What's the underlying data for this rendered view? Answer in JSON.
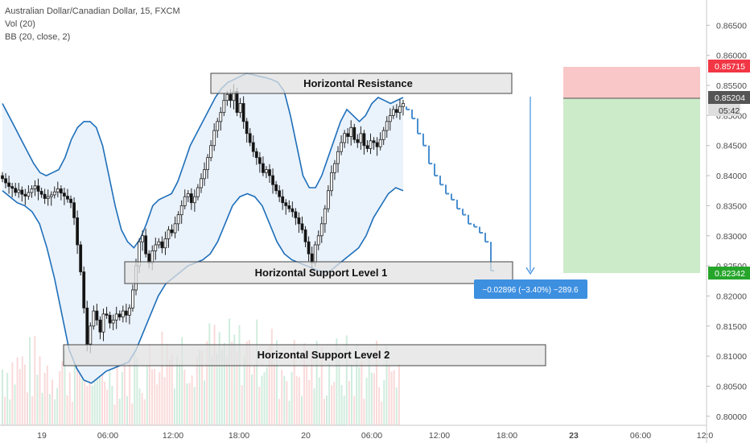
{
  "legend": {
    "symbol": "Australian Dollar/Canadian Dollar, 15, FXCM",
    "volume": "Vol (20)",
    "bollinger": "BB (20, close, 2)"
  },
  "annotations": {
    "resistance": "Horizontal Resistance",
    "support1": "Horizontal Support Level 1",
    "support2": "Horizontal Support Level 2",
    "measure": "−0.02896 (−3.40%) −289.6"
  },
  "price_tags": {
    "stop": "0.85715",
    "current": "0.85204",
    "countdown": "05:42",
    "target": "0.82342"
  },
  "colors": {
    "bull": "#333333",
    "bear": "#111111",
    "band": "#1e6fba",
    "band_fill": "#eaf2fb",
    "projection": "#4a8fd0",
    "stop_zone": "#f9c7c7",
    "target_zone": "#ccebc9",
    "stop_tag": "#f23645",
    "target_tag": "#26a52b",
    "current_tag": "#555555",
    "measure_box": "#3d8fe0"
  },
  "chart_data": {
    "type": "candlestick",
    "title": "Australian Dollar/Canadian Dollar, 15, FXCM",
    "y_axis": {
      "ylim": [
        0.7985,
        0.8692
      ],
      "ticks": [
        "0.80000",
        "0.80500",
        "0.81000",
        "0.81500",
        "0.82000",
        "0.82500",
        "0.83000",
        "0.83500",
        "0.84000",
        "0.84500",
        "0.85000",
        "0.85500",
        "0.86000",
        "0.86500"
      ]
    },
    "x_axis": {
      "ticks": [
        {
          "label": "19",
          "bold": false
        },
        {
          "label": "06:00",
          "bold": false
        },
        {
          "label": "12:00",
          "bold": false
        },
        {
          "label": "18:00",
          "bold": false
        },
        {
          "label": "20",
          "bold": false
        },
        {
          "label": "06:00",
          "bold": false
        },
        {
          "label": "12:00",
          "bold": false
        },
        {
          "label": "18:00",
          "bold": false
        },
        {
          "label": "23",
          "bold": true
        },
        {
          "label": "06:00",
          "bold": false
        },
        {
          "label": "12:0",
          "bold": false
        }
      ]
    },
    "series_close": [
      0.8395,
      0.8388,
      0.8382,
      0.8379,
      0.8372,
      0.8376,
      0.8369,
      0.8366,
      0.8372,
      0.8378,
      0.8383,
      0.8374,
      0.8369,
      0.8362,
      0.8365,
      0.8368,
      0.8373,
      0.8378,
      0.8371,
      0.8366,
      0.8361,
      0.8355,
      0.833,
      0.8285,
      0.824,
      0.818,
      0.812,
      0.815,
      0.8175,
      0.816,
      0.814,
      0.817,
      0.8168,
      0.8155,
      0.816,
      0.817,
      0.8165,
      0.8175,
      0.8168,
      0.818,
      0.821,
      0.825,
      0.829,
      0.83,
      0.827,
      0.8255,
      0.8275,
      0.8285,
      0.829,
      0.828,
      0.8295,
      0.831,
      0.8305,
      0.832,
      0.8335,
      0.835,
      0.8365,
      0.837,
      0.8355,
      0.8365,
      0.838,
      0.8395,
      0.841,
      0.843,
      0.845,
      0.8475,
      0.849,
      0.8505,
      0.8525,
      0.8535,
      0.8525,
      0.854,
      0.8505,
      0.852,
      0.849,
      0.847,
      0.8455,
      0.844,
      0.843,
      0.842,
      0.8405,
      0.841,
      0.84,
      0.8385,
      0.8375,
      0.8365,
      0.8355,
      0.835,
      0.8345,
      0.834,
      0.833,
      0.832,
      0.831,
      0.829,
      0.827,
      0.8255,
      0.8285,
      0.83,
      0.832,
      0.8345,
      0.8375,
      0.8405,
      0.842,
      0.844,
      0.8455,
      0.847,
      0.8465,
      0.848,
      0.846,
      0.8455,
      0.847,
      0.845,
      0.8445,
      0.8458,
      0.8455,
      0.8448,
      0.846,
      0.8475,
      0.849,
      0.85,
      0.851,
      0.8505,
      0.8515,
      0.852
    ],
    "projection_path": [
      0.851,
      0.8495,
      0.847,
      0.845,
      0.842,
      0.84,
      0.8385,
      0.837,
      0.836,
      0.8345,
      0.8335,
      0.832,
      0.8315,
      0.8305,
      0.829,
      0.8242
    ],
    "bollinger_upper": [
      0.852,
      0.85,
      0.848,
      0.846,
      0.844,
      0.842,
      0.8405,
      0.84,
      0.8405,
      0.841,
      0.843,
      0.846,
      0.848,
      0.849,
      0.849,
      0.848,
      0.845,
      0.84,
      0.835,
      0.831,
      0.829,
      0.828,
      0.8295,
      0.832,
      0.835,
      0.836,
      0.8365,
      0.837,
      0.839,
      0.842,
      0.845,
      0.847,
      0.849,
      0.851,
      0.853,
      0.8545,
      0.8555,
      0.856,
      0.8565,
      0.857,
      0.8568,
      0.8565,
      0.8563,
      0.856,
      0.8555,
      0.854,
      0.85,
      0.845,
      0.84,
      0.838,
      0.838,
      0.84,
      0.843,
      0.846,
      0.849,
      0.851,
      0.85,
      0.849,
      0.85,
      0.852,
      0.853,
      0.8525,
      0.852,
      0.8525,
      0.853
    ],
    "bollinger_lower": [
      0.8375,
      0.8365,
      0.8355,
      0.835,
      0.834,
      0.832,
      0.828,
      0.823,
      0.817,
      0.811,
      0.808,
      0.806,
      0.8055,
      0.8065,
      0.8075,
      0.808,
      0.8085,
      0.809,
      0.811,
      0.814,
      0.817,
      0.82,
      0.822,
      0.823,
      0.824,
      0.825,
      0.8255,
      0.826,
      0.827,
      0.829,
      0.832,
      0.835,
      0.8365,
      0.837,
      0.8365,
      0.835,
      0.832,
      0.829,
      0.827,
      0.826,
      0.8255,
      0.825,
      0.8245,
      0.824,
      0.824,
      0.825,
      0.826,
      0.827,
      0.828,
      0.83,
      0.833,
      0.835,
      0.837,
      0.838,
      0.8375
    ]
  }
}
